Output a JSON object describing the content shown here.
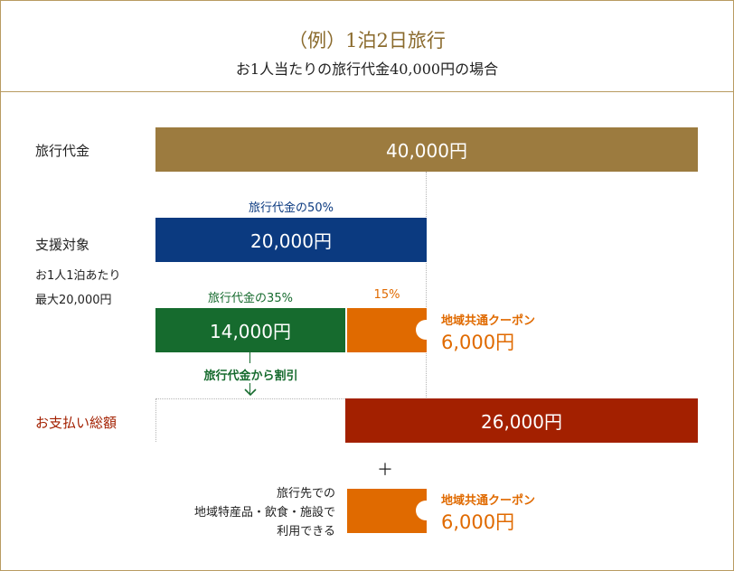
{
  "header": {
    "title": "（例）1泊2日旅行",
    "subtitle": "お1人当たりの旅行代金40,000円の場合"
  },
  "rows": {
    "travel_cost_label": "旅行代金",
    "support_label": "支援対象",
    "support_note_1": "お1人1泊あたり",
    "support_note_2": "最大20,000円",
    "payment_label": "お支払い総額"
  },
  "bars": {
    "travel_cost": "40,000円",
    "support_caption": "旅行代金の50%",
    "support": "20,000円",
    "discount_caption": "旅行代金の35%",
    "discount": "14,000円",
    "coupon_caption": "15%",
    "payment": "26,000円"
  },
  "coupon": {
    "title": "地域共通クーポン",
    "value": "6,000円"
  },
  "arrow_label": "旅行代金から割引",
  "plus": "＋",
  "bottom_text": {
    "line1": "旅行先での",
    "line2": "地域特産品・飲食・施設で",
    "line3": "利用できる"
  },
  "colors": {
    "gold": "#9c7b3f",
    "navy": "#0b3a80",
    "green": "#166b2e",
    "orange": "#e06a00",
    "red": "#a32000"
  }
}
